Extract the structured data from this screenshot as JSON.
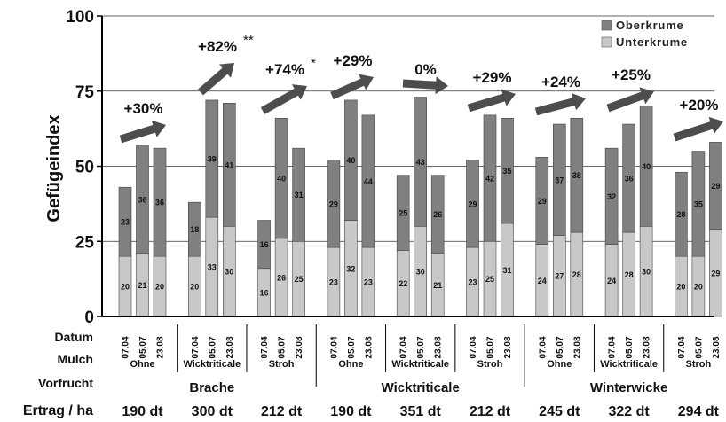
{
  "chart_data": {
    "type": "bar",
    "stacked": true,
    "ylabel": "Gefügeindex",
    "ylim": [
      0,
      100
    ],
    "yticks": [
      0,
      25,
      50,
      75,
      100
    ],
    "grid": true,
    "legend": {
      "position": "top-right",
      "entries": [
        {
          "name": "Oberkrume",
          "color": "#808080"
        },
        {
          "name": "Unterkrume",
          "color": "#c8c8c8"
        }
      ]
    },
    "series": [
      {
        "name": "Unterkrume",
        "color": "#c8c8c8",
        "values": [
          20,
          21,
          20,
          20,
          33,
          30,
          16,
          26,
          25,
          23,
          32,
          23,
          22,
          30,
          21,
          23,
          25,
          31,
          24,
          27,
          28,
          24,
          28,
          30,
          20,
          20,
          29
        ]
      },
      {
        "name": "Oberkrume",
        "color": "#808080",
        "values": [
          23,
          36,
          36,
          18,
          39,
          41,
          16,
          40,
          31,
          29,
          40,
          44,
          25,
          43,
          26,
          29,
          42,
          35,
          29,
          37,
          38,
          32,
          36,
          40,
          28,
          35,
          29
        ]
      }
    ],
    "categories": [
      "07.04",
      "05.07",
      "23.08",
      "07.04",
      "05.07",
      "23.08",
      "07.04",
      "05.07",
      "23.08",
      "07.04",
      "05.07",
      "23.08",
      "07.04",
      "05.07",
      "23.08",
      "07.04",
      "05.07",
      "23.08",
      "07.04",
      "05.07",
      "23.08",
      "07.04",
      "05.07",
      "23.08",
      "07.04",
      "05.07",
      "23.08"
    ],
    "groups": [
      {
        "mulch": "Ohne",
        "change": "+30%",
        "star": "",
        "ertrag": "190 dt"
      },
      {
        "mulch": "Wicktriticale",
        "change": "+82%",
        "star": "**",
        "ertrag": "300 dt"
      },
      {
        "mulch": "Stroh",
        "change": "+74%",
        "star": "*",
        "ertrag": "212 dt"
      },
      {
        "mulch": "Ohne",
        "change": "+29%",
        "star": "",
        "ertrag": "190 dt"
      },
      {
        "mulch": "Wicktriticale",
        "change": "0%",
        "star": "",
        "ertrag": "351 dt"
      },
      {
        "mulch": "Stroh",
        "change": "+29%",
        "star": "",
        "ertrag": "212 dt"
      },
      {
        "mulch": "Ohne",
        "change": "+24%",
        "star": "",
        "ertrag": "245 dt"
      },
      {
        "mulch": "Wicktriticale",
        "change": "+25%",
        "star": "",
        "ertrag": "322 dt"
      },
      {
        "mulch": "Stroh",
        "change": "+20%",
        "star": "",
        "ertrag": "294 dt"
      }
    ],
    "vorfrucht": [
      "Brache",
      "Wicktriticale",
      "Winterwicke"
    ],
    "row_labels": {
      "datum": "Datum",
      "mulch": "Mulch",
      "vorfrucht": "Vorfrucht",
      "ertrag": "Ertrag / ha"
    }
  }
}
